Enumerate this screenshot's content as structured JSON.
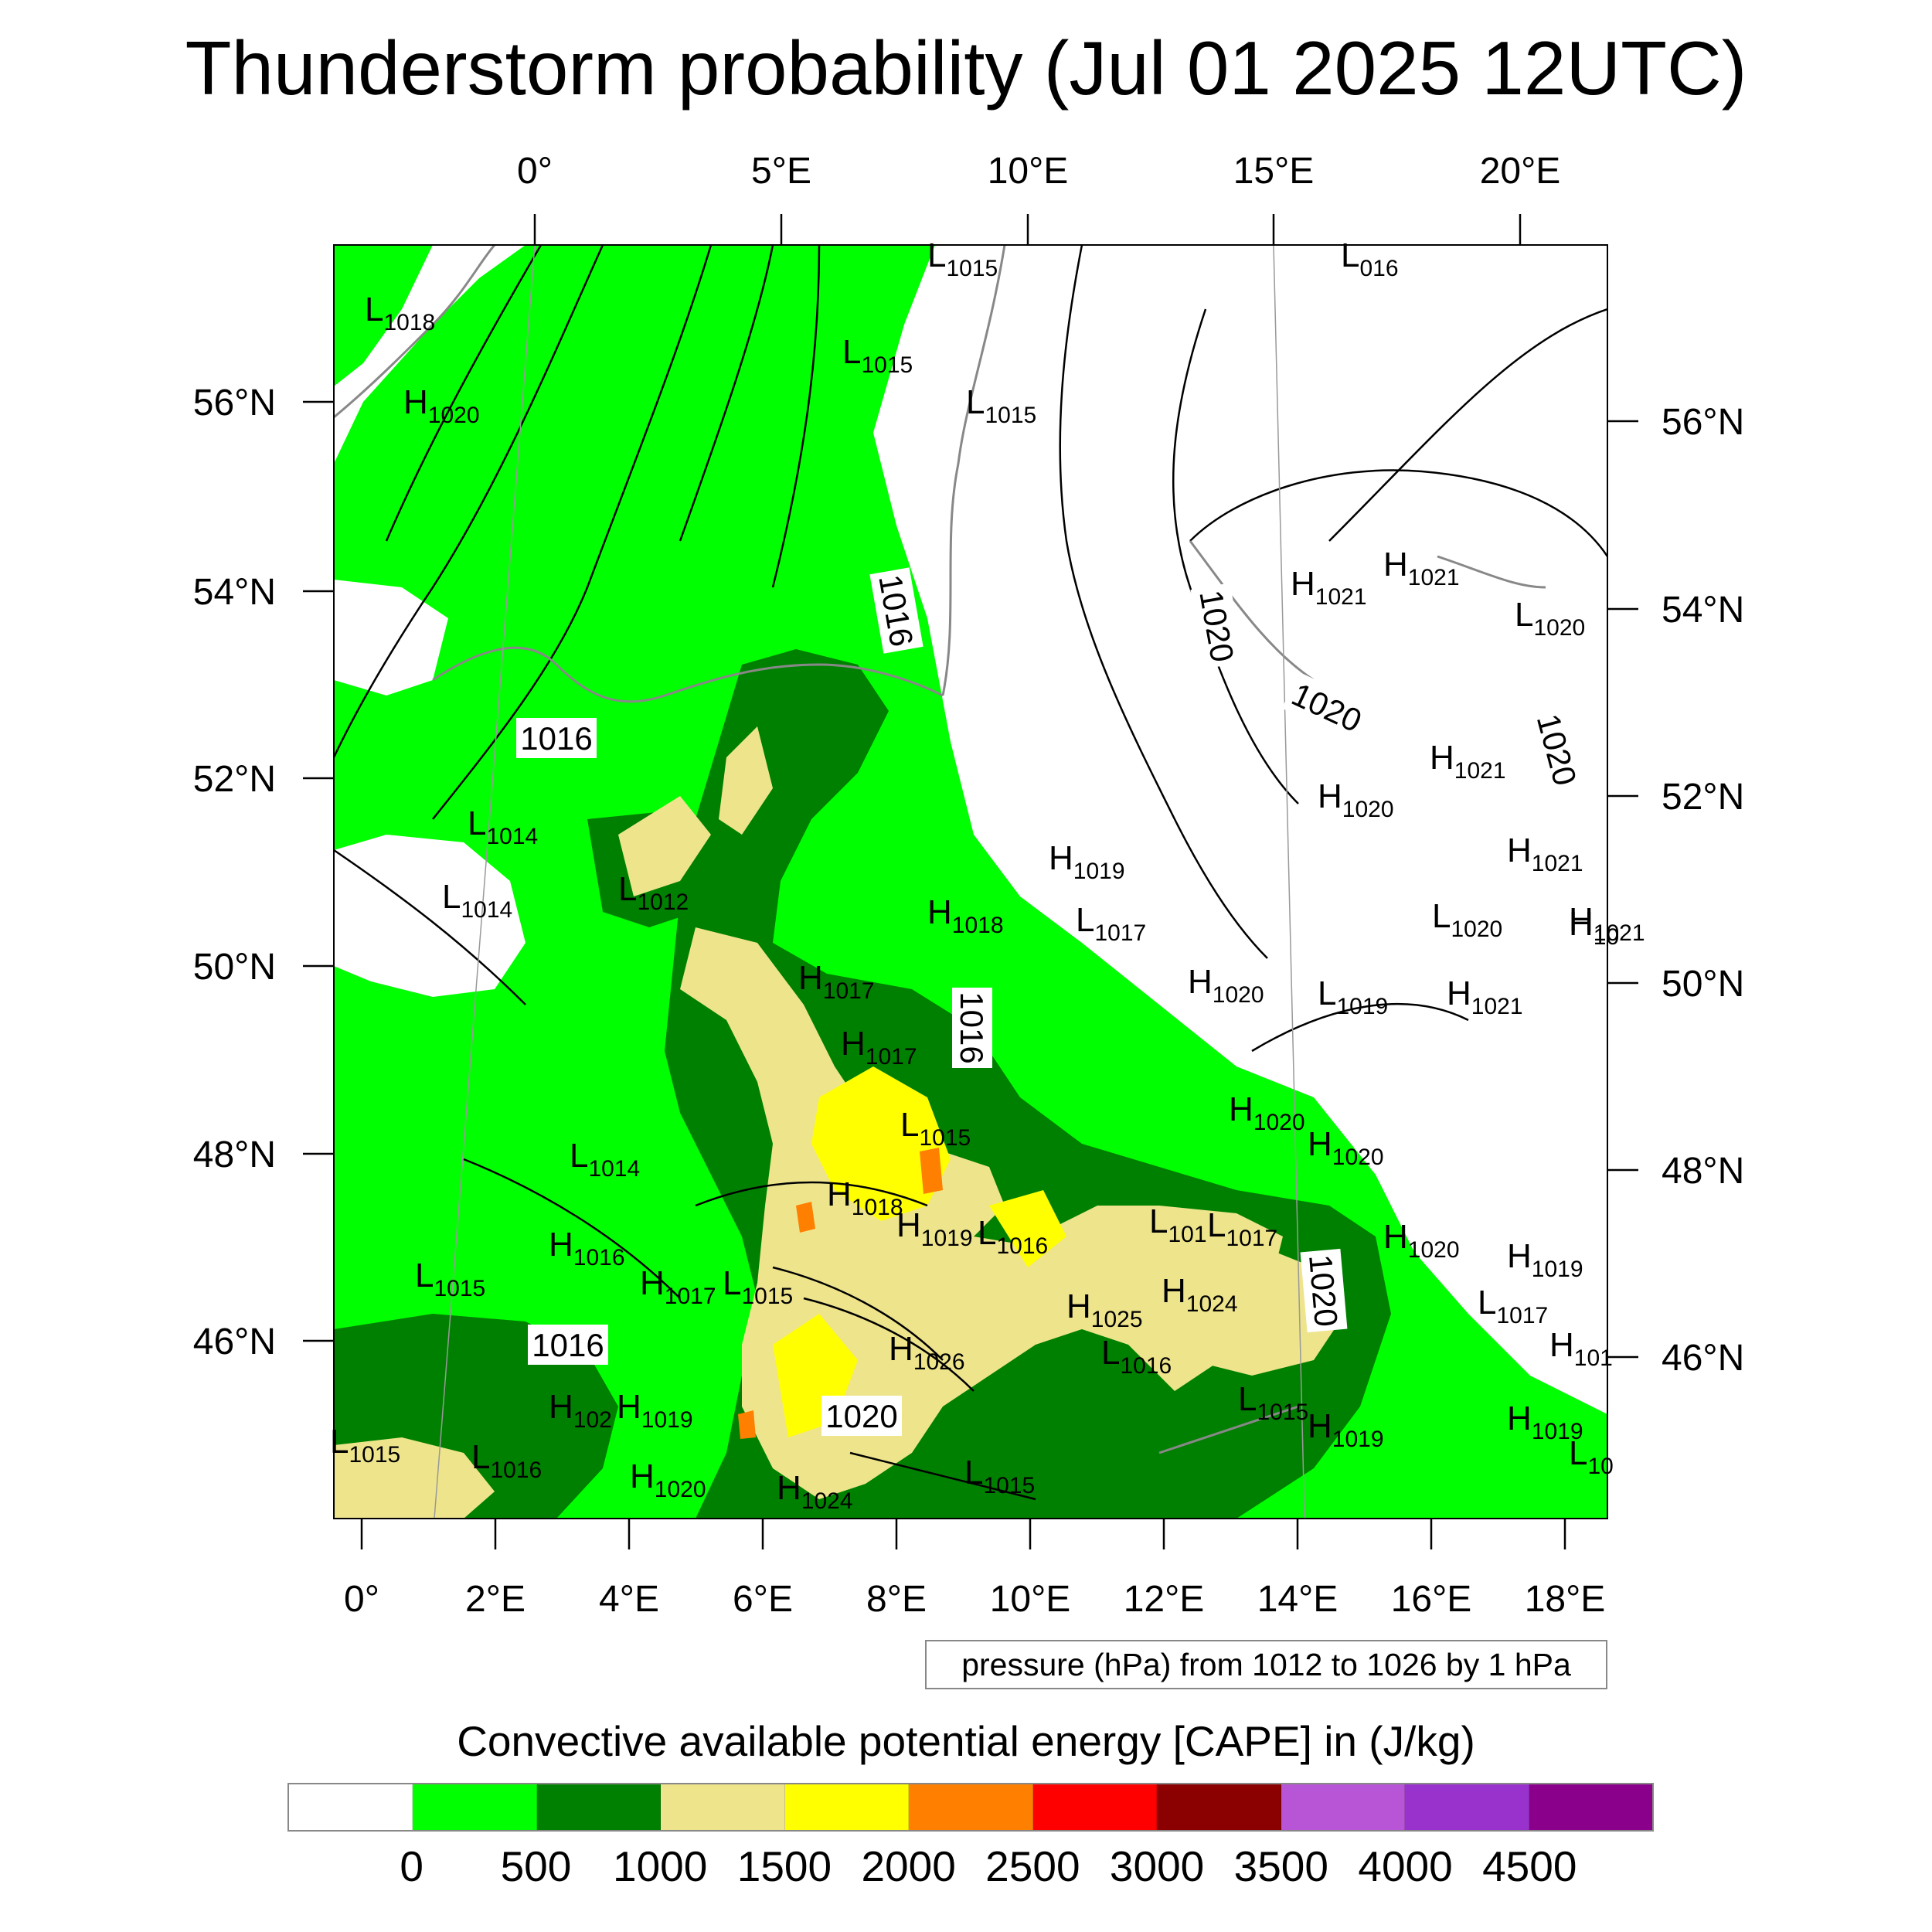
{
  "title": "Thunderstorm probability (Jul 01 2025 12UTC)",
  "top_lon_labels": [
    "0°",
    "5°E",
    "10°E",
    "15°E",
    "20°E"
  ],
  "bottom_lon_labels": [
    "0°",
    "2°E",
    "4°E",
    "6°E",
    "8°E",
    "10°E",
    "12°E",
    "14°E",
    "16°E",
    "18°E"
  ],
  "left_lat_labels": [
    "56°N",
    "54°N",
    "52°N",
    "50°N",
    "48°N",
    "46°N"
  ],
  "right_lat_labels": [
    "56°N",
    "54°N",
    "52°N",
    "50°N",
    "48°N",
    "46°N"
  ],
  "pressure_centers": [
    {
      "kind": "L",
      "value": "1018"
    },
    {
      "kind": "H",
      "value": "1020"
    },
    {
      "kind": "L",
      "value": "1015"
    },
    {
      "kind": "L",
      "value": "1015"
    },
    {
      "kind": "L",
      "value": "1015"
    },
    {
      "kind": "L",
      "value": "016"
    },
    {
      "kind": "H",
      "value": "1021"
    },
    {
      "kind": "H",
      "value": "1021"
    },
    {
      "kind": "L",
      "value": "1020"
    },
    {
      "kind": "L",
      "value": "1014"
    },
    {
      "kind": "L",
      "value": "1014"
    },
    {
      "kind": "L",
      "value": "1012"
    },
    {
      "kind": "H",
      "value": "1021"
    },
    {
      "kind": "H",
      "value": "1020"
    },
    {
      "kind": "H",
      "value": "1021"
    },
    {
      "kind": "H",
      "value": "1019"
    },
    {
      "kind": "H",
      "value": "1018"
    },
    {
      "kind": "L",
      "value": "1017"
    },
    {
      "kind": "L",
      "value": "1020"
    },
    {
      "kind": "H",
      "value": "1021"
    },
    {
      "kind": "H",
      "value": "10"
    },
    {
      "kind": "H",
      "value": "1017"
    },
    {
      "kind": "H",
      "value": "1020"
    },
    {
      "kind": "L",
      "value": "1019"
    },
    {
      "kind": "H",
      "value": "1021"
    },
    {
      "kind": "H",
      "value": "1017"
    },
    {
      "kind": "L",
      "value": "1015"
    },
    {
      "kind": "H",
      "value": "1020"
    },
    {
      "kind": "H",
      "value": "1020"
    },
    {
      "kind": "L",
      "value": "1014"
    },
    {
      "kind": "H",
      "value": "1018"
    },
    {
      "kind": "H",
      "value": "1019"
    },
    {
      "kind": "L",
      "value": "1016"
    },
    {
      "kind": "L",
      "value": "101"
    },
    {
      "kind": "L",
      "value": "1017"
    },
    {
      "kind": "H",
      "value": "1020"
    },
    {
      "kind": "H",
      "value": "1019"
    },
    {
      "kind": "H",
      "value": "1016"
    },
    {
      "kind": "L",
      "value": "1015"
    },
    {
      "kind": "H",
      "value": "1017"
    },
    {
      "kind": "L",
      "value": "1015"
    },
    {
      "kind": "H",
      "value": "1024"
    },
    {
      "kind": "H",
      "value": "1025"
    },
    {
      "kind": "L",
      "value": "1017"
    },
    {
      "kind": "H",
      "value": "1026"
    },
    {
      "kind": "L",
      "value": "1016"
    },
    {
      "kind": "H",
      "value": "101"
    },
    {
      "kind": "H",
      "value": "102"
    },
    {
      "kind": "H",
      "value": "1019"
    },
    {
      "kind": "L",
      "value": "1015"
    },
    {
      "kind": "H",
      "value": "1019"
    },
    {
      "kind": "H",
      "value": "1019"
    },
    {
      "kind": "L",
      "value": "1015"
    },
    {
      "kind": "L",
      "value": "1016"
    },
    {
      "kind": "L",
      "value": "10"
    },
    {
      "kind": "H",
      "value": "1020"
    },
    {
      "kind": "H",
      "value": "1024"
    },
    {
      "kind": "L",
      "value": "1015"
    }
  ],
  "isobar_labels": [
    "1016",
    "1016",
    "1016",
    "1016",
    "1020",
    "1020",
    "1020",
    "1020",
    "1020"
  ],
  "pressure_note": "pressure (hPa) from 1012 to 1026 by 1 hPa",
  "colorbar": {
    "title": "Convective available potential energy [CAPE] in (J/kg)",
    "tick_labels": [
      "0",
      "500",
      "1000",
      "1500",
      "2000",
      "2500",
      "3000",
      "3500",
      "4000",
      "4500"
    ],
    "colors": [
      "#ffffff",
      "#00ff00",
      "#008000",
      "#eee48c",
      "#ffff00",
      "#ff8000",
      "#ff0000",
      "#8b0000",
      "#b855d6",
      "#9932cc",
      "#8b008b"
    ]
  }
}
